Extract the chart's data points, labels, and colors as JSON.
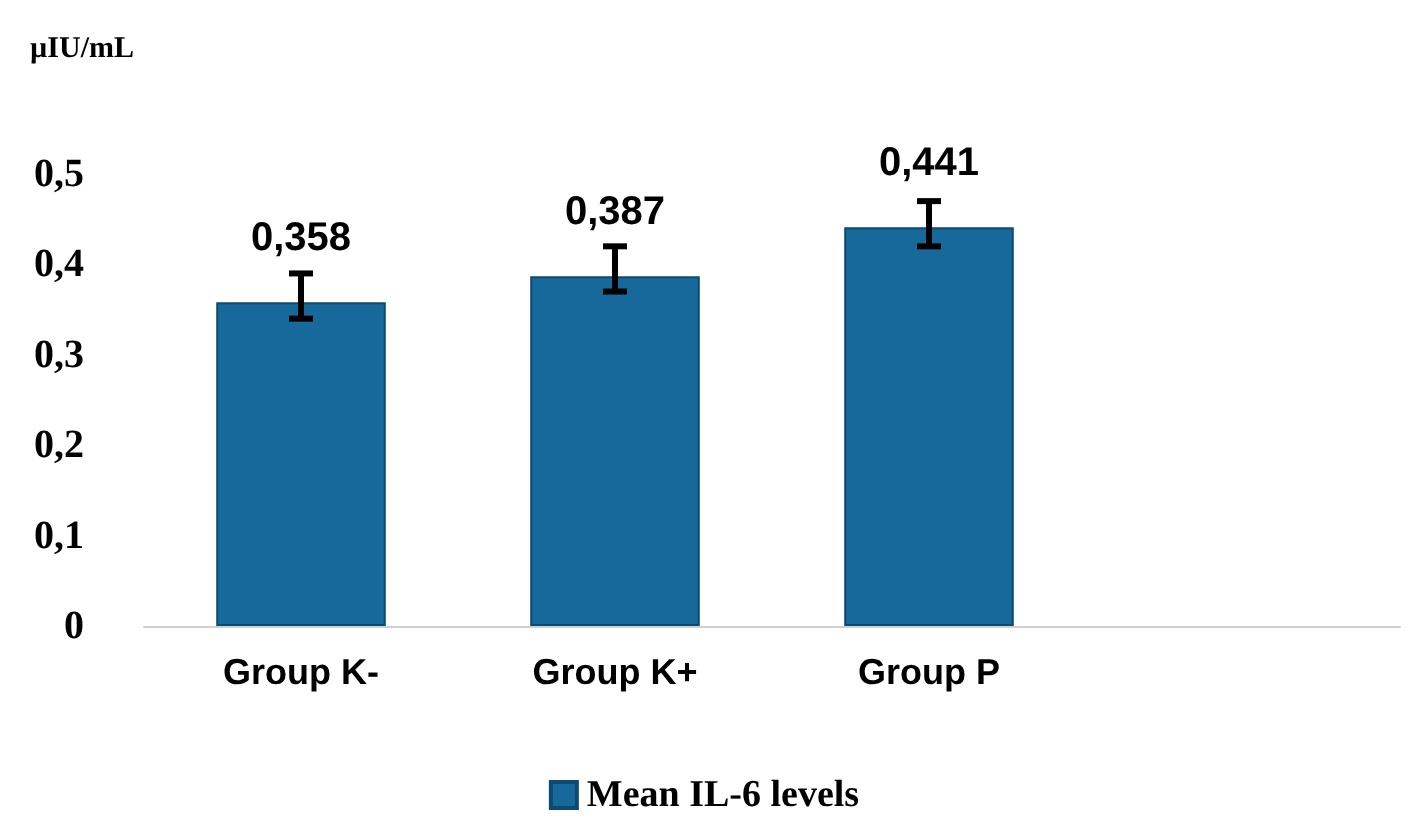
{
  "chart_data": {
    "type": "bar",
    "ylabel": "µIU/mL",
    "categories": [
      "Group K-",
      "Group K+",
      "Group P",
      null
    ],
    "series": [
      {
        "name": "Mean IL-6 levels",
        "color": "#17699b",
        "values": [
          0.358,
          0.387,
          0.441,
          null
        ],
        "errors": [
          [
            0.34,
            0.39
          ],
          [
            0.37,
            0.42
          ],
          [
            0.42,
            0.47
          ],
          null
        ],
        "value_labels": [
          "0,358",
          "0,387",
          "0,441",
          null
        ]
      }
    ],
    "ylim": [
      0,
      0.5
    ],
    "yticks": [
      {
        "value": 0,
        "label": "0"
      },
      {
        "value": 0.1,
        "label": "0,1"
      },
      {
        "value": 0.2,
        "label": "0,2"
      },
      {
        "value": 0.3,
        "label": "0,3"
      },
      {
        "value": 0.4,
        "label": "0,4"
      },
      {
        "value": 0.5,
        "label": "0,5"
      }
    ],
    "grid": false,
    "legend": "bottom"
  }
}
